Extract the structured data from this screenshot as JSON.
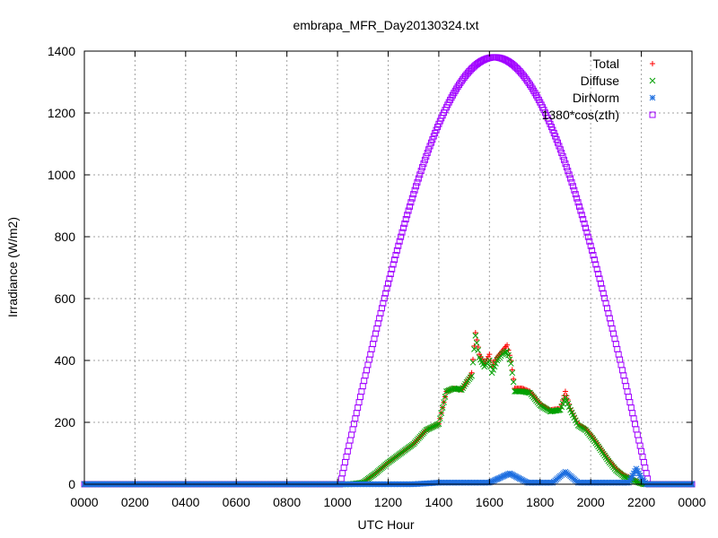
{
  "chart_data": {
    "type": "scatter",
    "title": "embrapa_MFR_Day20130324.txt",
    "xlabel": "UTC Hour",
    "ylabel": "Irradiance (W/m2)",
    "xlim": [
      0,
      24
    ],
    "ylim": [
      0,
      1400
    ],
    "grid": true,
    "legend_placement": "top-right",
    "x_tick_labels": [
      "0000",
      "0200",
      "0400",
      "0600",
      "0800",
      "1000",
      "1200",
      "1400",
      "1600",
      "1800",
      "2000",
      "2200",
      "0000"
    ],
    "y_tick_labels": [
      "0",
      "200",
      "400",
      "600",
      "800",
      "1000",
      "1200",
      "1400"
    ],
    "series": [
      {
        "name": "Total",
        "marker": "+",
        "color": "#ff0000",
        "points": [
          [
            0,
            0
          ],
          [
            10.5,
            0
          ],
          [
            11.0,
            5
          ],
          [
            11.5,
            35
          ],
          [
            12.0,
            70
          ],
          [
            12.5,
            100
          ],
          [
            13.0,
            130
          ],
          [
            13.5,
            175
          ],
          [
            14.0,
            195
          ],
          [
            14.3,
            300
          ],
          [
            14.6,
            310
          ],
          [
            14.9,
            305
          ],
          [
            15.1,
            330
          ],
          [
            15.3,
            360
          ],
          [
            15.45,
            490
          ],
          [
            15.6,
            420
          ],
          [
            15.8,
            390
          ],
          [
            16.0,
            420
          ],
          [
            16.1,
            380
          ],
          [
            16.3,
            410
          ],
          [
            16.5,
            430
          ],
          [
            16.7,
            450
          ],
          [
            16.85,
            400
          ],
          [
            17.0,
            310
          ],
          [
            17.3,
            310
          ],
          [
            17.6,
            300
          ],
          [
            18.0,
            260
          ],
          [
            18.4,
            240
          ],
          [
            18.8,
            245
          ],
          [
            19.0,
            300
          ],
          [
            19.2,
            245
          ],
          [
            19.5,
            195
          ],
          [
            19.8,
            180
          ],
          [
            20.1,
            150
          ],
          [
            20.4,
            115
          ],
          [
            20.7,
            80
          ],
          [
            21.0,
            50
          ],
          [
            21.3,
            30
          ],
          [
            21.6,
            20
          ],
          [
            21.9,
            5
          ],
          [
            22.1,
            0
          ],
          [
            24,
            0
          ]
        ]
      },
      {
        "name": "Diffuse",
        "marker": "x",
        "color": "#00a000",
        "points": [
          [
            0,
            0
          ],
          [
            10.5,
            0
          ],
          [
            11.0,
            5
          ],
          [
            11.5,
            35
          ],
          [
            12.0,
            70
          ],
          [
            12.5,
            100
          ],
          [
            13.0,
            130
          ],
          [
            13.5,
            175
          ],
          [
            14.0,
            195
          ],
          [
            14.3,
            300
          ],
          [
            14.6,
            310
          ],
          [
            14.9,
            305
          ],
          [
            15.1,
            330
          ],
          [
            15.3,
            350
          ],
          [
            15.45,
            480
          ],
          [
            15.6,
            410
          ],
          [
            15.8,
            380
          ],
          [
            16.0,
            400
          ],
          [
            16.1,
            360
          ],
          [
            16.3,
            400
          ],
          [
            16.5,
            420
          ],
          [
            16.7,
            430
          ],
          [
            16.85,
            390
          ],
          [
            17.0,
            300
          ],
          [
            17.3,
            300
          ],
          [
            17.6,
            295
          ],
          [
            18.0,
            255
          ],
          [
            18.4,
            235
          ],
          [
            18.8,
            240
          ],
          [
            19.0,
            280
          ],
          [
            19.2,
            240
          ],
          [
            19.5,
            190
          ],
          [
            19.8,
            175
          ],
          [
            20.1,
            145
          ],
          [
            20.4,
            110
          ],
          [
            20.7,
            75
          ],
          [
            21.0,
            45
          ],
          [
            21.3,
            25
          ],
          [
            21.6,
            15
          ],
          [
            21.9,
            5
          ],
          [
            22.1,
            0
          ],
          [
            24,
            0
          ]
        ]
      },
      {
        "name": "DirNorm",
        "marker": "*",
        "color": "#1e6fe0",
        "points": [
          [
            0,
            0
          ],
          [
            10.0,
            0
          ],
          [
            11.0,
            0
          ],
          [
            12.0,
            0
          ],
          [
            13.0,
            0
          ],
          [
            14.0,
            5
          ],
          [
            15.0,
            5
          ],
          [
            15.5,
            5
          ],
          [
            16.0,
            5
          ],
          [
            16.8,
            35
          ],
          [
            17.5,
            5
          ],
          [
            18.5,
            5
          ],
          [
            19.0,
            40
          ],
          [
            19.5,
            5
          ],
          [
            20.5,
            5
          ],
          [
            21.5,
            5
          ],
          [
            21.8,
            50
          ],
          [
            22.0,
            20
          ],
          [
            22.2,
            0
          ],
          [
            24,
            0
          ]
        ]
      },
      {
        "name": "1380*cos(zth)",
        "marker": "square",
        "color": "#a000ff",
        "peak": 1380,
        "sunrise_hour": 10.1,
        "solar_noon_hour": 16.2,
        "sunset_hour": 22.3
      }
    ]
  }
}
